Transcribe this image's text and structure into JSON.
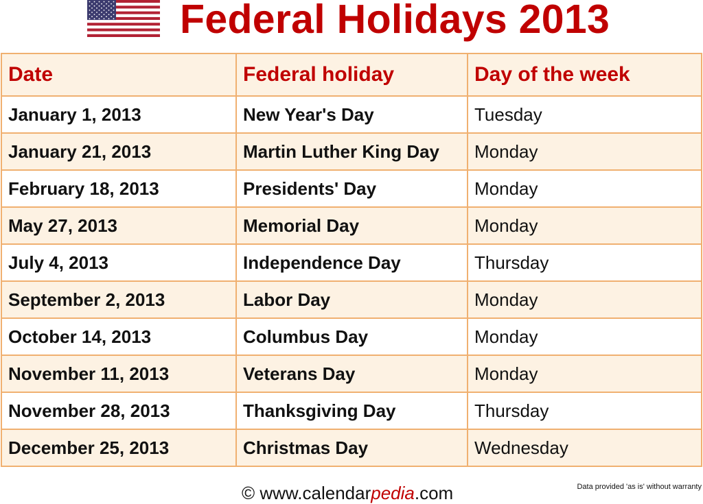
{
  "title": "Federal Holidays 2013",
  "flag_icon": "us-flag-icon",
  "colors": {
    "title": "#c00000",
    "border": "#f0b070",
    "alt_row": "#fdf2e3"
  },
  "headers": [
    "Date",
    "Federal holiday",
    "Day of the week"
  ],
  "rows": [
    {
      "date": "January 1, 2013",
      "holiday": "New Year's Day",
      "day": "Tuesday"
    },
    {
      "date": "January 21, 2013",
      "holiday": "Martin Luther King Day",
      "day": "Monday"
    },
    {
      "date": "February 18, 2013",
      "holiday": "Presidents' Day",
      "day": "Monday"
    },
    {
      "date": "May 27, 2013",
      "holiday": "Memorial Day",
      "day": "Monday"
    },
    {
      "date": "July 4, 2013",
      "holiday": "Independence Day",
      "day": "Thursday"
    },
    {
      "date": "September 2, 2013",
      "holiday": "Labor Day",
      "day": "Monday"
    },
    {
      "date": "October 14, 2013",
      "holiday": "Columbus Day",
      "day": "Monday"
    },
    {
      "date": "November 11, 2013",
      "holiday": "Veterans Day",
      "day": "Monday"
    },
    {
      "date": "November 28, 2013",
      "holiday": "Thanksgiving Day",
      "day": "Thursday"
    },
    {
      "date": "December 25, 2013",
      "holiday": "Christmas Day",
      "day": "Wednesday"
    }
  ],
  "footer": {
    "prefix": "© www.calendar",
    "brand": "pedia",
    "suffix": ".com",
    "disclaimer": "Data provided 'as is' without warranty"
  }
}
